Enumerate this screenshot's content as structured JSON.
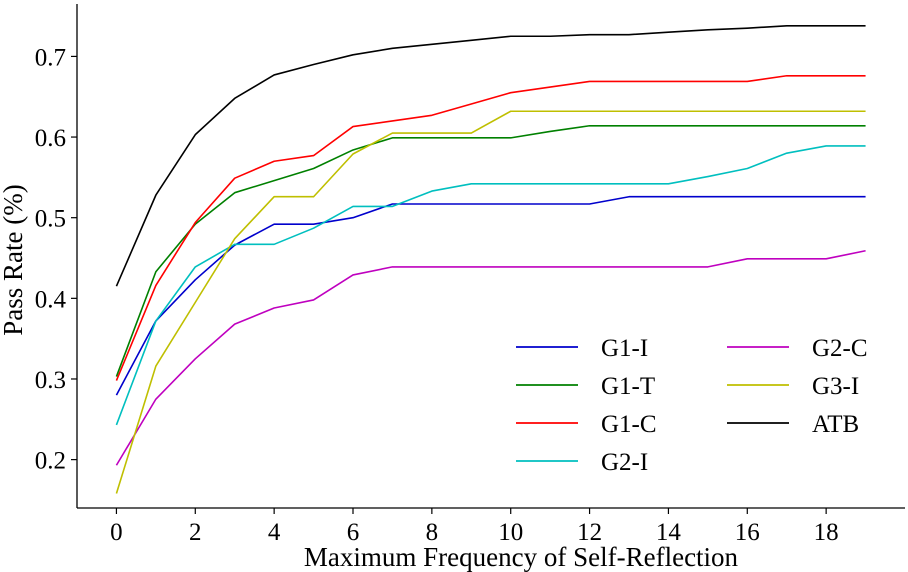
{
  "chart_data": {
    "type": "line",
    "xlabel": "Maximum Frequency of Self-Reflection",
    "ylabel": "Pass Rate (%)",
    "xlim": [
      -1,
      20
    ],
    "ylim": [
      0.14,
      0.765
    ],
    "xticks": [
      0,
      2,
      4,
      6,
      8,
      10,
      12,
      14,
      16,
      18
    ],
    "yticks": [
      0.2,
      0.3,
      0.4,
      0.5,
      0.6,
      0.7
    ],
    "ytick_labels": [
      "0.2",
      "0.3",
      "0.4",
      "0.5",
      "0.6",
      "0.7"
    ],
    "grid": false,
    "legend_position": "lower-right",
    "x": [
      0,
      1,
      2,
      3,
      4,
      5,
      6,
      7,
      8,
      9,
      10,
      11,
      12,
      13,
      14,
      15,
      16,
      17,
      18,
      19
    ],
    "series": [
      {
        "name": "G1-I",
        "color": "#0000cc",
        "values": [
          0.28,
          0.372,
          0.423,
          0.466,
          0.492,
          0.492,
          0.5,
          0.517,
          0.517,
          0.517,
          0.517,
          0.517,
          0.517,
          0.526,
          0.526,
          0.526,
          0.526,
          0.526,
          0.526,
          0.526
        ]
      },
      {
        "name": "G1-T",
        "color": "#008000",
        "values": [
          0.303,
          0.433,
          0.492,
          0.531,
          0.546,
          0.561,
          0.584,
          0.599,
          0.599,
          0.599,
          0.599,
          0.607,
          0.614,
          0.614,
          0.614,
          0.614,
          0.614,
          0.614,
          0.614,
          0.614
        ]
      },
      {
        "name": "G1-C",
        "color": "#ff0000",
        "values": [
          0.298,
          0.416,
          0.494,
          0.549,
          0.57,
          0.577,
          0.613,
          0.62,
          0.627,
          0.641,
          0.655,
          0.662,
          0.669,
          0.669,
          0.669,
          0.669,
          0.669,
          0.676,
          0.676,
          0.676
        ]
      },
      {
        "name": "G2-I",
        "color": "#00bfbf",
        "values": [
          0.243,
          0.372,
          0.439,
          0.467,
          0.467,
          0.487,
          0.514,
          0.514,
          0.533,
          0.542,
          0.542,
          0.542,
          0.542,
          0.542,
          0.542,
          0.551,
          0.561,
          0.58,
          0.589,
          0.589
        ]
      },
      {
        "name": "G2-C",
        "color": "#bf00bf",
        "values": [
          0.193,
          0.275,
          0.325,
          0.368,
          0.388,
          0.398,
          0.429,
          0.439,
          0.439,
          0.439,
          0.439,
          0.439,
          0.439,
          0.439,
          0.439,
          0.439,
          0.449,
          0.449,
          0.449,
          0.459
        ]
      },
      {
        "name": "G3-I",
        "color": "#bfbf00",
        "values": [
          0.158,
          0.316,
          0.395,
          0.474,
          0.526,
          0.526,
          0.579,
          0.605,
          0.605,
          0.605,
          0.632,
          0.632,
          0.632,
          0.632,
          0.632,
          0.632,
          0.632,
          0.632,
          0.632,
          0.632
        ]
      },
      {
        "name": "ATB",
        "color": "#000000",
        "values": [
          0.415,
          0.528,
          0.603,
          0.648,
          0.677,
          0.69,
          0.702,
          0.71,
          0.715,
          0.72,
          0.725,
          0.725,
          0.727,
          0.727,
          0.73,
          0.733,
          0.735,
          0.738,
          0.738,
          0.738
        ]
      }
    ]
  }
}
